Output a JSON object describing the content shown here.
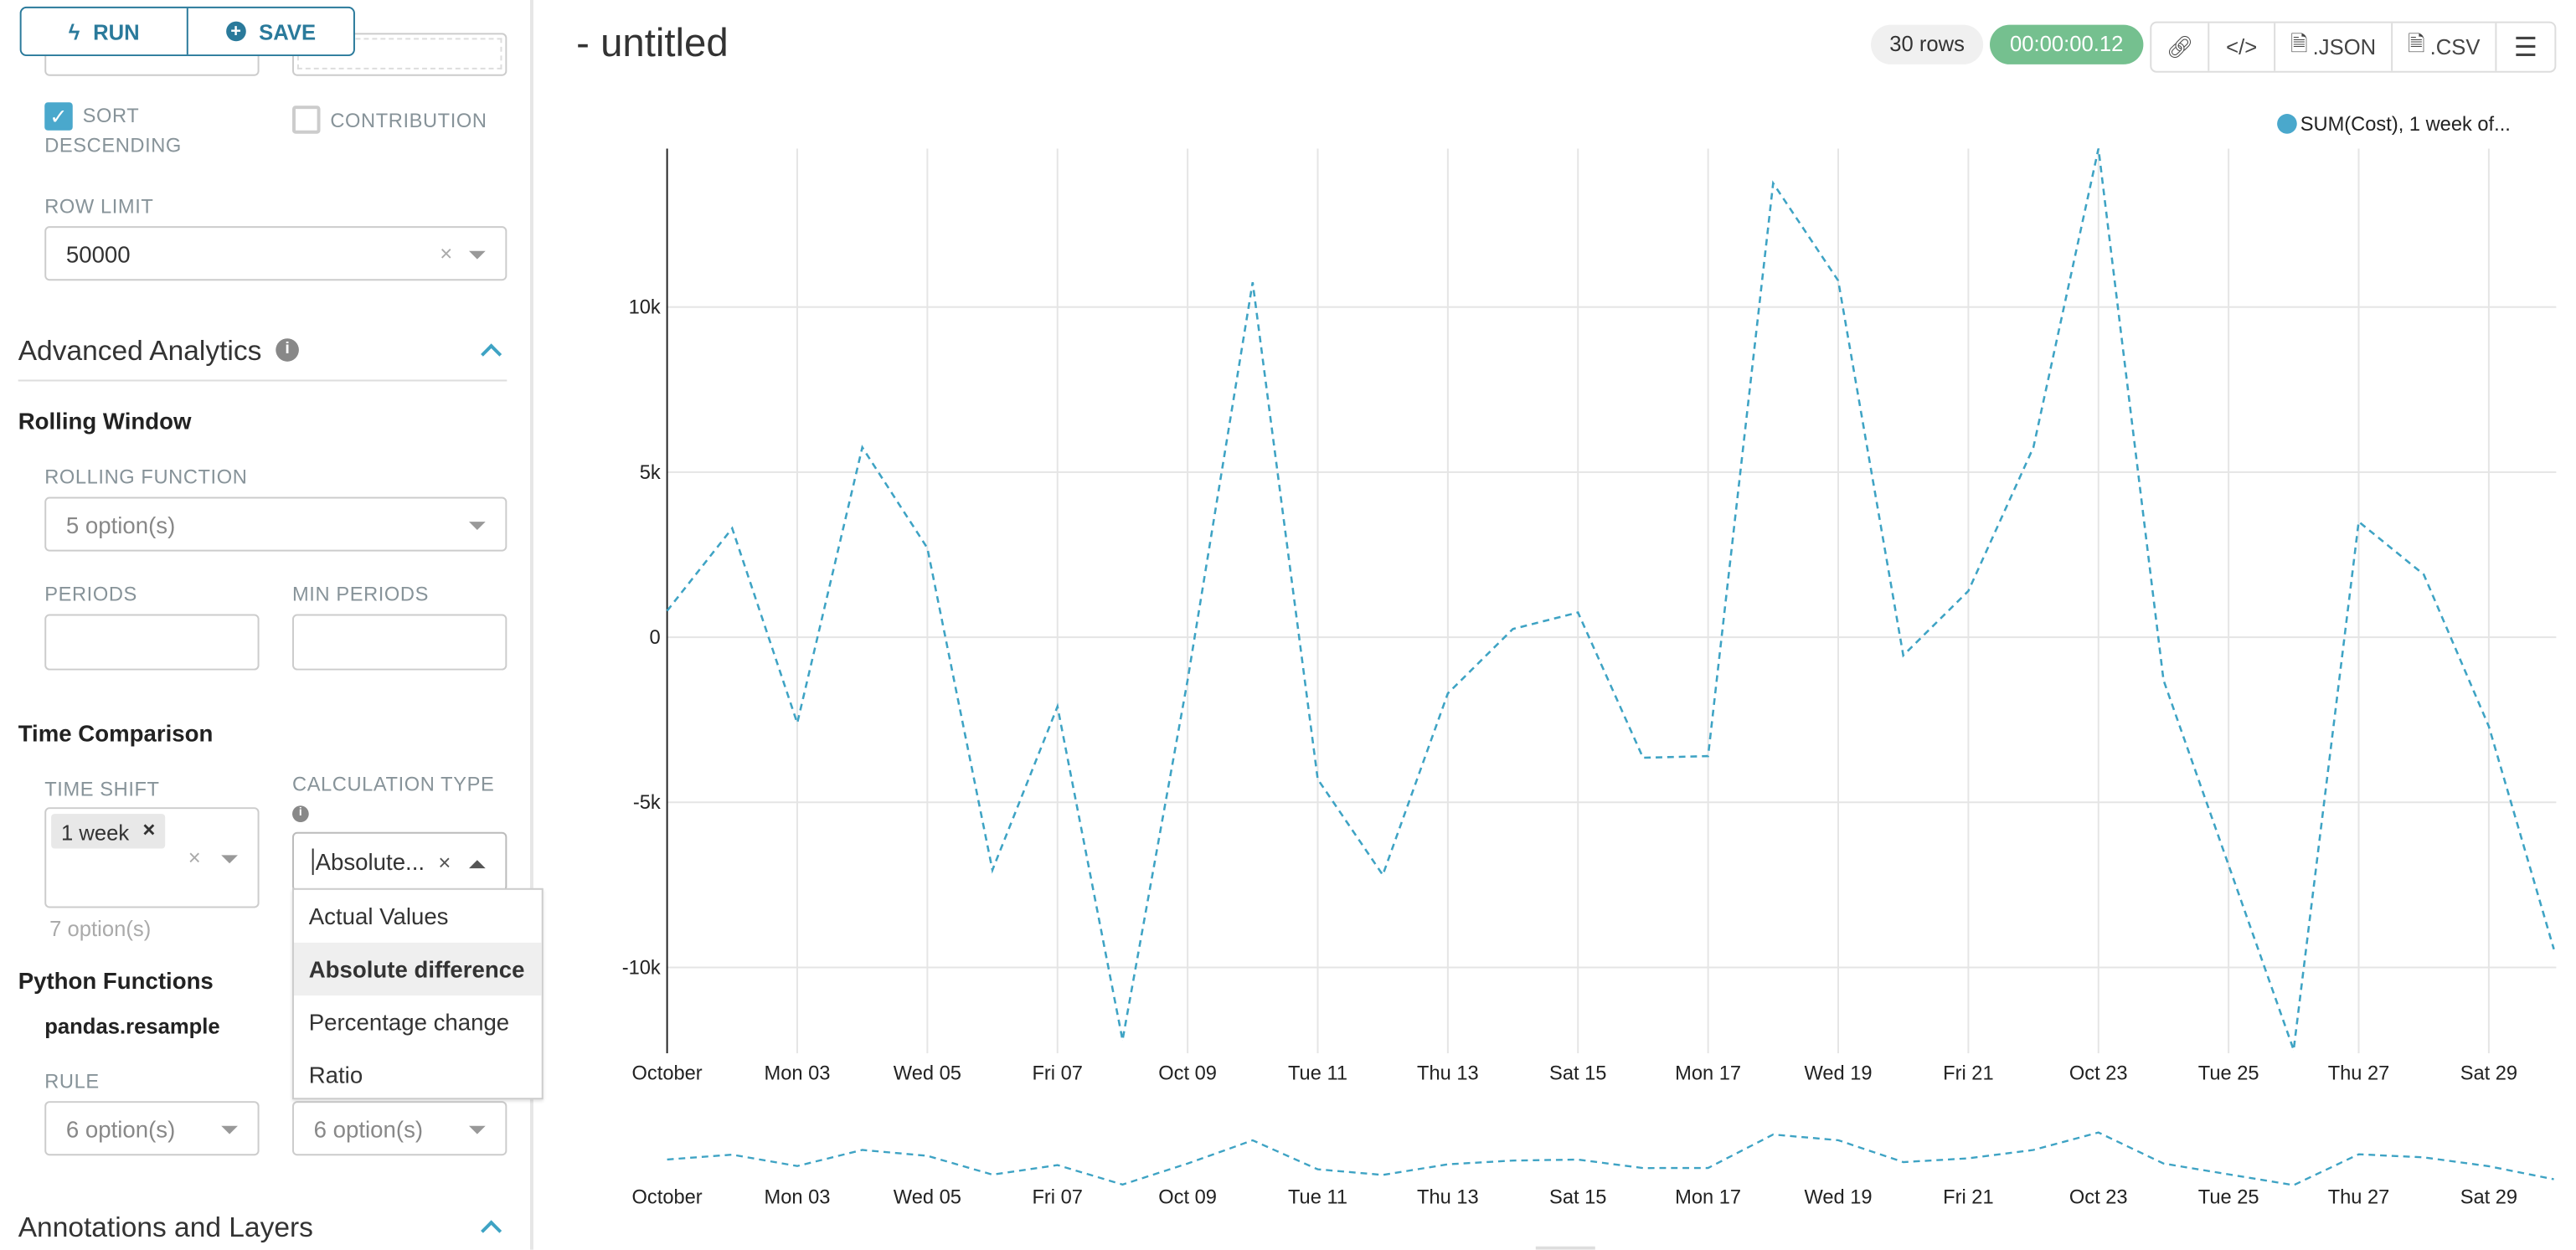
{
  "toolbar": {
    "run_label": "RUN",
    "save_label": "SAVE"
  },
  "sidebar": {
    "sort_descending": {
      "label_line1": "SORT",
      "label_line2": "DESCENDING",
      "checked": true
    },
    "contribution": {
      "label": "CONTRIBUTION",
      "checked": false
    },
    "row_limit": {
      "label": "ROW LIMIT",
      "value": "50000"
    },
    "advanced_analytics": {
      "title": "Advanced Analytics"
    },
    "rolling_window": {
      "title": "Rolling Window",
      "rolling_function_label": "ROLLING FUNCTION",
      "rolling_function_placeholder": "5 option(s)",
      "periods_label": "PERIODS",
      "min_periods_label": "MIN PERIODS"
    },
    "time_comparison": {
      "title": "Time Comparison",
      "time_shift_label": "TIME SHIFT",
      "time_shift_tag": "1 week",
      "time_shift_hint": "7 option(s)",
      "calc_type_label": "CALCULATION TYPE",
      "calc_type_value": "Absolute...",
      "calc_type_options": [
        "Actual Values",
        "Absolute difference",
        "Percentage change",
        "Ratio"
      ],
      "calc_type_highlighted": 1
    },
    "python_functions": {
      "title": "Python Functions",
      "subtitle": "pandas.resample",
      "rule_label": "RULE",
      "rule_placeholder": "6 option(s)",
      "method_placeholder": "6 option(s)"
    },
    "annotations": {
      "title": "Annotations and Layers"
    }
  },
  "header": {
    "title": "- untitled",
    "rows_badge": "30 rows",
    "timer": "00:00:00.12",
    "json_label": ".JSON",
    "csv_label": ".CSV"
  },
  "colors": {
    "accent": "#2a7a9b",
    "series": "#3ea3c4",
    "timer_bg": "#75c08f",
    "checkbox": "#4aa8cc"
  },
  "chart_data": {
    "type": "line",
    "line_style": "dashed",
    "x": [
      "2022-10-01",
      "2022-10-02",
      "2022-10-03",
      "2022-10-04",
      "2022-10-05",
      "2022-10-06",
      "2022-10-07",
      "2022-10-08",
      "2022-10-09",
      "2022-10-10",
      "2022-10-11",
      "2022-10-12",
      "2022-10-13",
      "2022-10-14",
      "2022-10-15",
      "2022-10-16",
      "2022-10-17",
      "2022-10-18",
      "2022-10-19",
      "2022-10-20",
      "2022-10-21",
      "2022-10-22",
      "2022-10-23",
      "2022-10-24",
      "2022-10-25",
      "2022-10-26",
      "2022-10-27",
      "2022-10-28",
      "2022-10-29",
      "2022-10-30"
    ],
    "series": [
      {
        "name": "SUM(Cost), 1 week of...",
        "values": [
          800,
          3300,
          -2600,
          5750,
          2700,
          -7050,
          -2100,
          -12200,
          -1300,
          10750,
          -4300,
          -7200,
          -1700,
          250,
          750,
          -3650,
          -3600,
          13750,
          10800,
          -550,
          1400,
          5750,
          14800,
          -1300,
          -6900,
          -12500,
          3500,
          1900,
          -2700,
          -9450
        ]
      }
    ],
    "x_tick_labels": [
      "October",
      "Mon 03",
      "Wed 05",
      "Fri 07",
      "Oct 09",
      "Tue 11",
      "Thu 13",
      "Sat 15",
      "Mon 17",
      "Wed 19",
      "Fri 21",
      "Oct 23",
      "Tue 25",
      "Thu 27",
      "Sat 29"
    ],
    "y_ticks": [
      -10000,
      -5000,
      0,
      5000,
      10000
    ],
    "y_tick_labels": [
      "-10k",
      "-5k",
      "0",
      "5k",
      "10k"
    ],
    "ylim": [
      -12600,
      14800
    ],
    "grid": true,
    "legend": "top-right",
    "brush": true
  }
}
